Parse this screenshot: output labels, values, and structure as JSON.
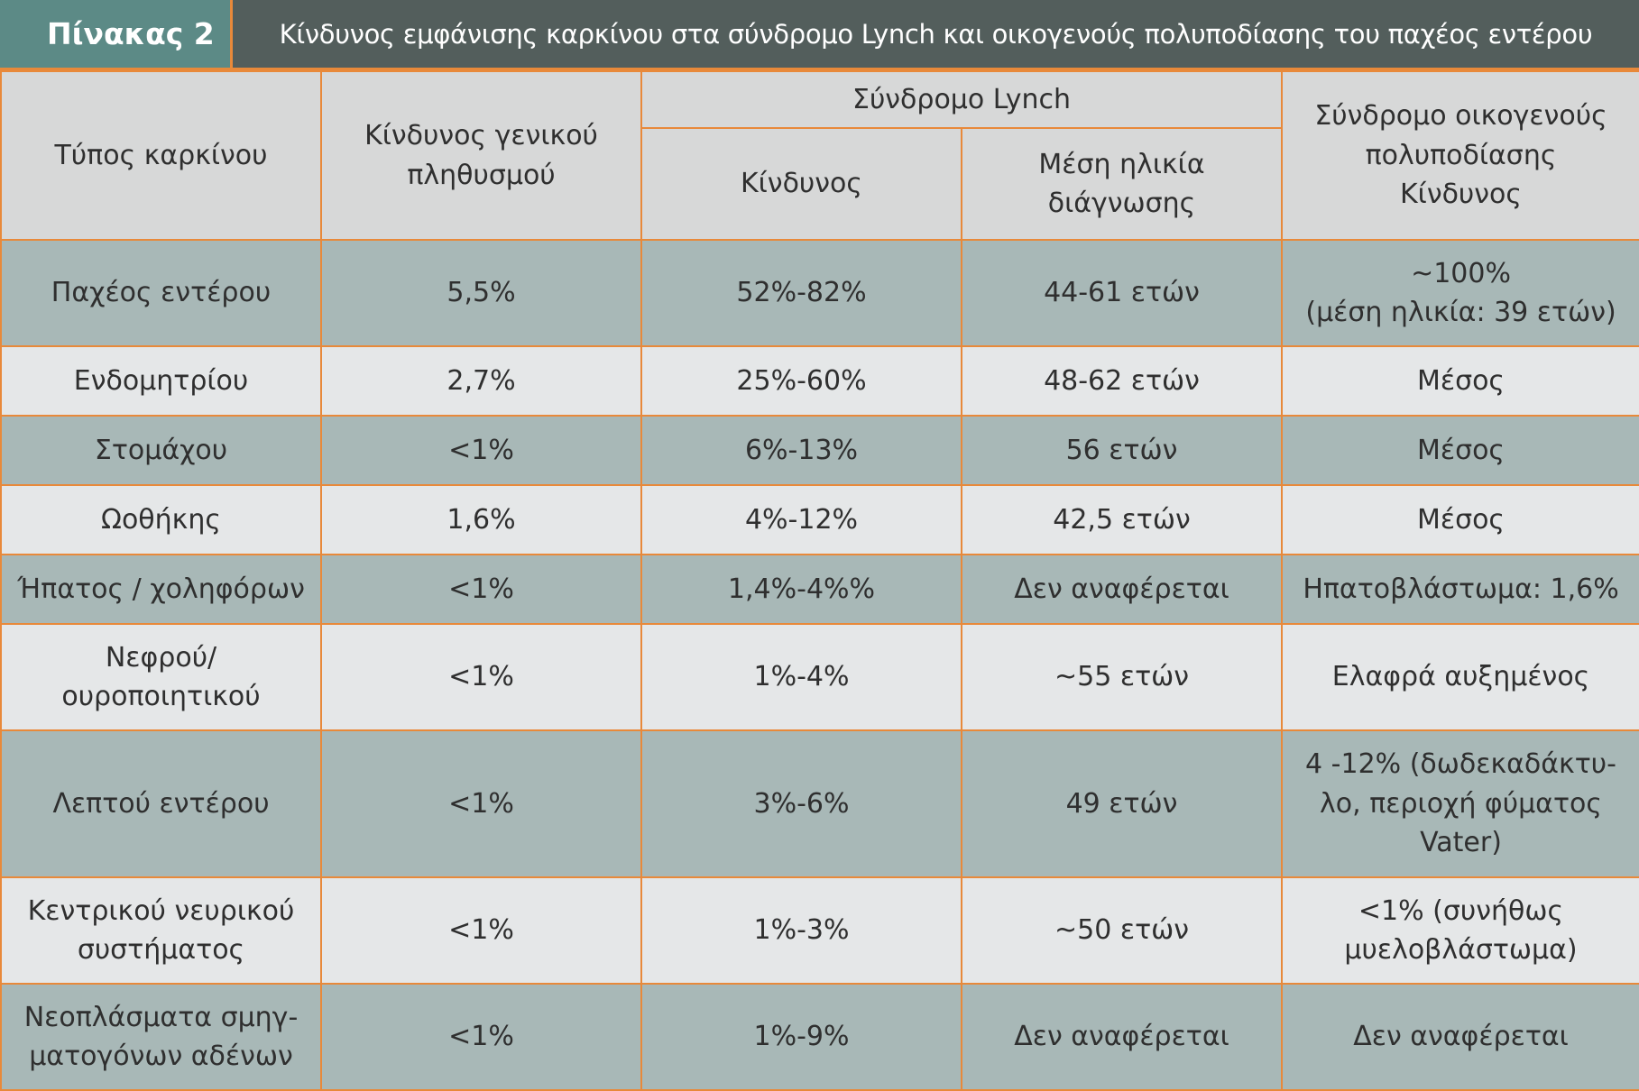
{
  "title": {
    "tag": "Πίνακας 2",
    "text": "Κίνδυνος εμφάνισης καρκίνου στα σύνδρομο Lynch και οικογενούς πολυποδίασης του παχέος εντέρου"
  },
  "headers": {
    "type": "Τύπος καρκίνου",
    "general": "Κίνδυνος γενικού\nπληθυσμού",
    "lynch": "Σύνδρομο Lynch",
    "lynch_risk": "Κίνδυνος",
    "lynch_age": "Μέση ηλικία\nδιάγνωσης",
    "fap": "Σύνδρομο οικογενούς\nπολυποδίασης\nΚίνδυνος"
  },
  "rows": [
    [
      "Παχέος εντέρου",
      "5,5%",
      "52%-82%",
      "44-61 ετών",
      "~100%\n(μέση ηλικία: 39 ετών)"
    ],
    [
      "Ενδομητρίου",
      "2,7%",
      "25%-60%",
      "48-62 ετών",
      "Μέσος"
    ],
    [
      "Στομάχου",
      "<1%",
      "6%-13%",
      "56 ετών",
      "Μέσος"
    ],
    [
      "Ωοθήκης",
      "1,6%",
      "4%-12%",
      "42,5 ετών",
      "Μέσος"
    ],
    [
      "Ήπατος / χοληφόρων",
      "<1%",
      "1,4%-4%%",
      "Δεν αναφέρεται",
      "Ηπατοβλάστωμα: 1,6%"
    ],
    [
      "Νεφρού/\nουροποιητικού",
      "<1%",
      "1%-4%",
      "~55 ετών",
      "Ελαφρά αυξημένος"
    ],
    [
      "Λεπτού εντέρου",
      "<1%",
      "3%-6%",
      "49 ετών",
      "4 -12% (δωδεκαδάκτυ-\nλο, περιοχή φύματος\nVater)"
    ],
    [
      "Κεντρικού νευρικού\nσυστήματος",
      "<1%",
      "1%-3%",
      "~50 ετών",
      "<1% (συνήθως\nμυελοβλάστωμα)"
    ],
    [
      "Νεοπλάσματα σμηγ-\nματογόνων αδένων",
      "<1%",
      "1%-9%",
      "Δεν αναφέρεται",
      "Δεν αναφέρεται"
    ]
  ],
  "colors": {
    "orange_border": "#e8893a",
    "title_tag_bg": "#5c8a86",
    "title_bar_bg": "#535e5c",
    "header_bg": "#d7d8d8",
    "row_dark": "#a8b8b7",
    "row_light": "#e5e7e8"
  }
}
